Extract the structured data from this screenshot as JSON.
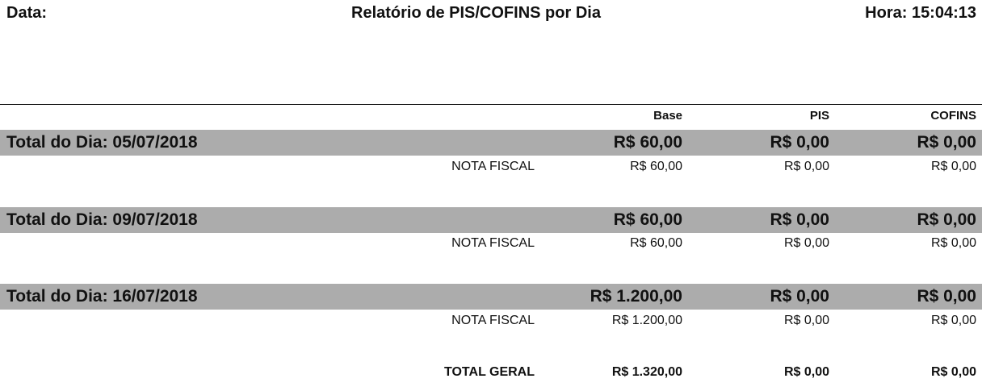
{
  "header": {
    "date_label": "Data:",
    "title": "Relatório de PIS/COFINS por Dia",
    "time_label": "Hora: 15:04:13"
  },
  "columns": {
    "base": "Base",
    "pis": "PIS",
    "cofins": "COFINS"
  },
  "days": [
    {
      "label": "Total do Dia: 05/07/2018",
      "base": "R$ 60,00",
      "pis": "R$ 0,00",
      "cofins": "R$ 0,00",
      "detail": {
        "label": "NOTA FISCAL",
        "base": "R$ 60,00",
        "pis": "R$ 0,00",
        "cofins": "R$ 0,00"
      }
    },
    {
      "label": "Total do Dia: 09/07/2018",
      "base": "R$ 60,00",
      "pis": "R$ 0,00",
      "cofins": "R$ 0,00",
      "detail": {
        "label": "NOTA FISCAL",
        "base": "R$ 60,00",
        "pis": "R$ 0,00",
        "cofins": "R$ 0,00"
      }
    },
    {
      "label": "Total do Dia: 16/07/2018",
      "base": "R$ 1.200,00",
      "pis": "R$ 0,00",
      "cofins": "R$ 0,00",
      "detail": {
        "label": "NOTA FISCAL",
        "base": "R$ 1.200,00",
        "pis": "R$ 0,00",
        "cofins": "R$ 0,00"
      }
    }
  ],
  "total": {
    "label": "TOTAL GERAL",
    "base": "R$ 1.320,00",
    "pis": "R$ 0,00",
    "cofins": "R$ 0,00"
  },
  "colors": {
    "day_bar": "#acacac"
  }
}
